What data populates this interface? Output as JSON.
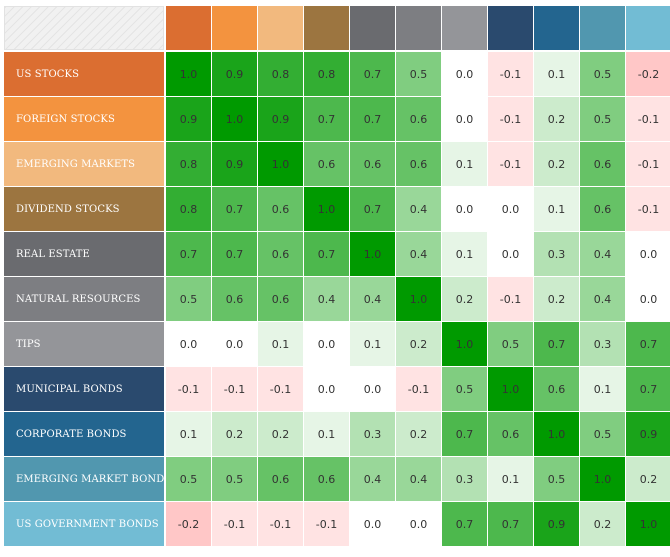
{
  "chart_data": {
    "type": "heatmap",
    "title": "",
    "column_header_colors": [
      "#db6e31",
      "#f3933f",
      "#f2b97e",
      "#9c7540",
      "#6a6b6f",
      "#7d7e82",
      "#949599",
      "#2a4a6e",
      "#23658f",
      "#5197af",
      "#72bcd4"
    ],
    "rows": [
      {
        "label": "US STOCKS",
        "color": "#db6e31",
        "values": [
          1.0,
          0.9,
          0.8,
          0.8,
          0.7,
          0.5,
          0.0,
          -0.1,
          0.1,
          0.5,
          -0.2
        ]
      },
      {
        "label": "FOREIGN STOCKS",
        "color": "#f3933f",
        "values": [
          0.9,
          1.0,
          0.9,
          0.7,
          0.7,
          0.6,
          0.0,
          -0.1,
          0.2,
          0.5,
          -0.1
        ]
      },
      {
        "label": "EMERGING MARKETS",
        "color": "#f2b97e",
        "values": [
          0.8,
          0.9,
          1.0,
          0.6,
          0.6,
          0.6,
          0.1,
          -0.1,
          0.2,
          0.6,
          -0.1
        ]
      },
      {
        "label": "DIVIDEND STOCKS",
        "color": "#9c7540",
        "values": [
          0.8,
          0.7,
          0.6,
          1.0,
          0.7,
          0.4,
          0.0,
          0.0,
          0.1,
          0.6,
          -0.1
        ]
      },
      {
        "label": "REAL ESTATE",
        "color": "#6a6b6f",
        "values": [
          0.7,
          0.7,
          0.6,
          0.7,
          1.0,
          0.4,
          0.1,
          0.0,
          0.3,
          0.4,
          0.0
        ]
      },
      {
        "label": "NATURAL RESOURCES",
        "color": "#7d7e82",
        "values": [
          0.5,
          0.6,
          0.6,
          0.4,
          0.4,
          1.0,
          0.2,
          -0.1,
          0.2,
          0.4,
          0.0
        ]
      },
      {
        "label": "TIPS",
        "color": "#949599",
        "values": [
          0.0,
          0.0,
          0.1,
          0.0,
          0.1,
          0.2,
          1.0,
          0.5,
          0.7,
          0.3,
          0.7
        ]
      },
      {
        "label": "MUNICIPAL BONDS",
        "color": "#2a4a6e",
        "values": [
          -0.1,
          -0.1,
          -0.1,
          0.0,
          0.0,
          -0.1,
          0.5,
          1.0,
          0.6,
          0.1,
          0.7
        ]
      },
      {
        "label": "CORPORATE BONDS",
        "color": "#23658f",
        "values": [
          0.1,
          0.2,
          0.2,
          0.1,
          0.3,
          0.2,
          0.7,
          0.6,
          1.0,
          0.5,
          0.9
        ]
      },
      {
        "label": "EMERGING MARKET BONDS",
        "color": "#5197af",
        "values": [
          0.5,
          0.5,
          0.6,
          0.6,
          0.4,
          0.4,
          0.3,
          0.1,
          0.5,
          1.0,
          0.2
        ]
      },
      {
        "label": "US GOVERNMENT BONDS",
        "color": "#72bcd4",
        "values": [
          -0.2,
          -0.1,
          -0.1,
          -0.1,
          0.0,
          0.0,
          0.7,
          0.7,
          0.9,
          0.2,
          1.0
        ]
      }
    ],
    "value_range": [
      -0.2,
      1.0
    ],
    "scale_colors": {
      "positive_max": "#009a00",
      "negative_max": "#ffc7c7",
      "zero": "#ffffff"
    },
    "grid": true,
    "legend": "none"
  }
}
